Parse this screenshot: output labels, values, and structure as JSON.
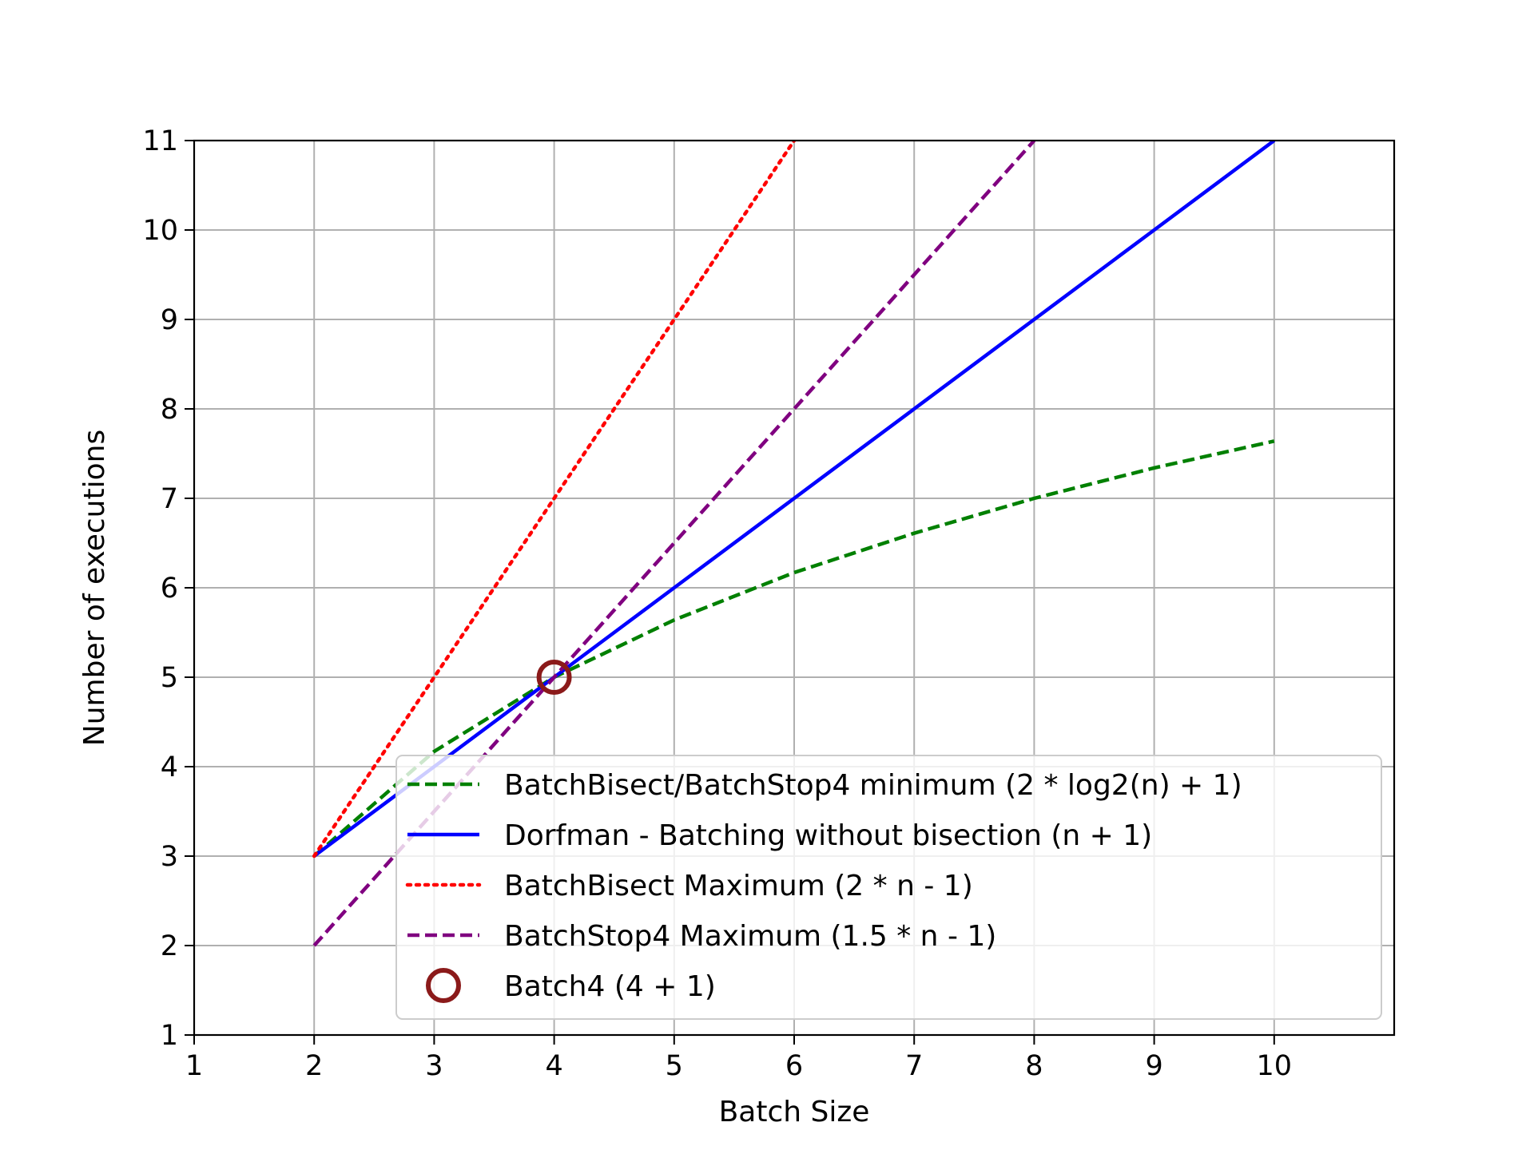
{
  "chart_data": {
    "type": "line",
    "title": "",
    "xlabel": "Batch Size",
    "ylabel": "Number of executions",
    "xlim": [
      1,
      11
    ],
    "ylim": [
      1,
      11
    ],
    "xticks": [
      "1",
      "2",
      "3",
      "4",
      "5",
      "6",
      "7",
      "8",
      "9",
      "10"
    ],
    "yticks": [
      "1",
      "2",
      "3",
      "4",
      "5",
      "6",
      "7",
      "8",
      "9",
      "10",
      "11"
    ],
    "grid": true,
    "legend_position": "lower-right",
    "series": [
      {
        "name": "BatchBisect/BatchStop4 minimum (2 * log2(n) + 1)",
        "color": "#008000",
        "style": "dashed",
        "x": [
          2,
          3,
          4,
          5,
          6,
          7,
          8,
          9,
          10
        ],
        "y": [
          3,
          4.17,
          5,
          5.64,
          6.17,
          6.61,
          7,
          7.34,
          7.64
        ]
      },
      {
        "name": "Dorfman - Batching without bisection (n + 1)",
        "color": "#0000ff",
        "style": "solid",
        "x": [
          2,
          3,
          4,
          5,
          6,
          7,
          8,
          9,
          10
        ],
        "y": [
          3,
          4,
          5,
          6,
          7,
          8,
          9,
          10,
          11
        ]
      },
      {
        "name": "BatchBisect Maximum (2 * n - 1)",
        "color": "#ff0000",
        "style": "dotted",
        "x": [
          2,
          3,
          4,
          5,
          6
        ],
        "y": [
          3,
          5,
          7,
          9,
          11
        ]
      },
      {
        "name": "BatchStop4 Maximum (1.5 * n - 1)",
        "color": "#800080",
        "style": "dashed",
        "x": [
          2,
          3,
          4,
          5,
          6,
          7,
          8
        ],
        "y": [
          2,
          3.5,
          5,
          6.5,
          8,
          9.5,
          11
        ]
      },
      {
        "name": "Batch4 (4 + 1)",
        "color": "#8b1a1a",
        "style": "marker",
        "x": [
          4
        ],
        "y": [
          5
        ]
      }
    ]
  }
}
